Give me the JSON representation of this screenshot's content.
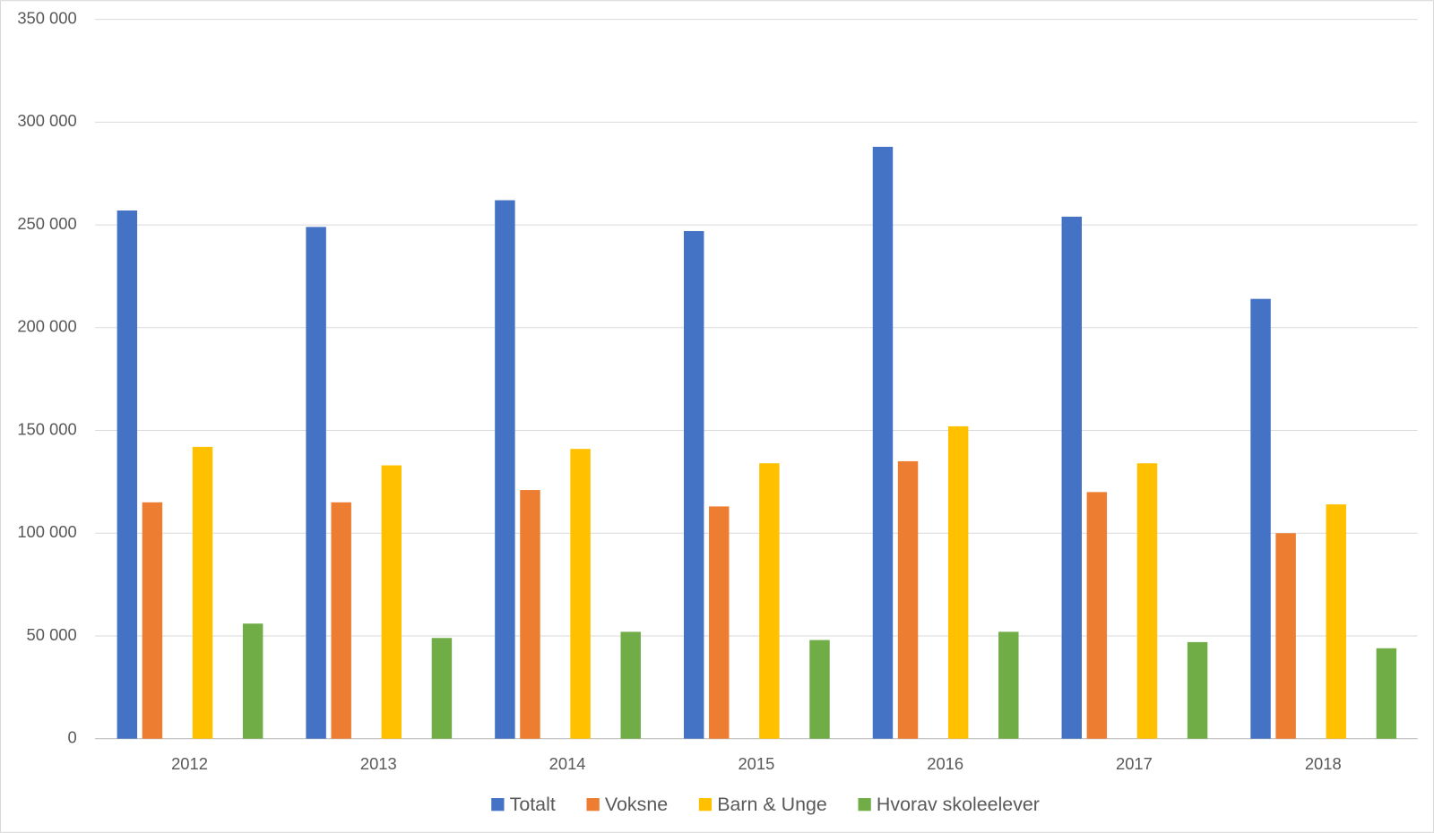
{
  "chart_data": {
    "type": "bar",
    "categories": [
      "2012",
      "2013",
      "2014",
      "2015",
      "2016",
      "2017",
      "2018"
    ],
    "series": [
      {
        "name": "Totalt",
        "color": "#4472c4",
        "values": [
          257000,
          249000,
          262000,
          247000,
          288000,
          254000,
          214000
        ]
      },
      {
        "name": "Voksne",
        "color": "#ed7d31",
        "values": [
          115000,
          115000,
          121000,
          113000,
          135000,
          120000,
          100000
        ]
      },
      {
        "name": "Barn & Unge",
        "color": "#ffc000",
        "values": [
          142000,
          133000,
          141000,
          134000,
          152000,
          134000,
          114000
        ]
      },
      {
        "name": "Hvorav skoleelever",
        "color": "#70ad47",
        "values": [
          56000,
          49000,
          52000,
          48000,
          52000,
          47000,
          44000
        ]
      }
    ],
    "ylim": [
      0,
      350000
    ],
    "yticks": [
      0,
      {
        "value": 50000,
        "label": "50 000"
      },
      {
        "value": 100000,
        "label": "100 000"
      },
      {
        "value": 150000,
        "label": "150 000"
      },
      {
        "value": 200000,
        "label": "200 000"
      },
      {
        "value": 250000,
        "label": "250 000"
      },
      {
        "value": 300000,
        "label": "300 000"
      },
      {
        "value": 350000,
        "label": "350 000"
      }
    ],
    "grid": true,
    "legend": "bottom"
  }
}
